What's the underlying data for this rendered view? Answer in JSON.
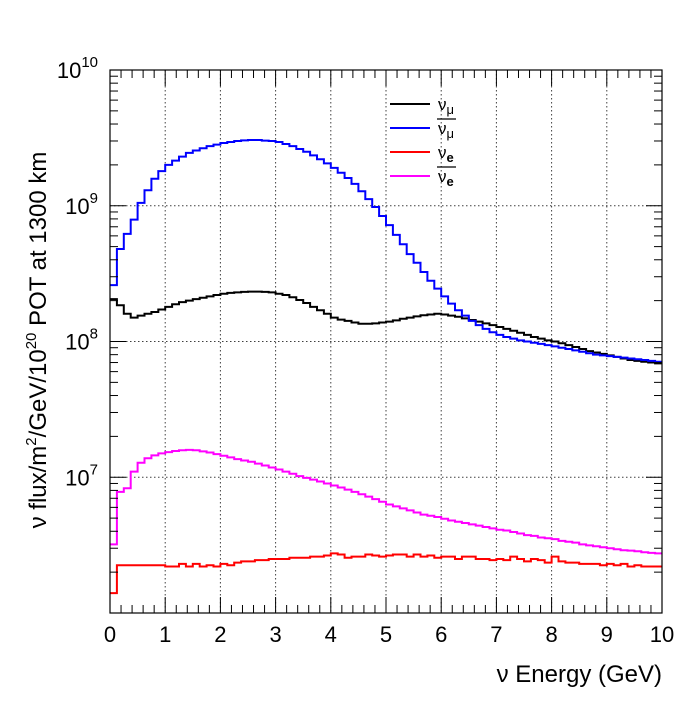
{
  "chart_data": {
    "type": "line",
    "step": true,
    "title": "",
    "xlabel": "ν Energy (GeV)",
    "ylabel": {
      "pre": "ν flux/m",
      "sup1": "2",
      "mid": "/GeV/10",
      "sup2": "20",
      "post": " POT at 1300 km"
    },
    "xlim": [
      0,
      10
    ],
    "ylim": [
      1000000,
      10000000000
    ],
    "yscale": "log",
    "grid": true,
    "legend_position": "top-right",
    "x_ticks": [
      "0",
      "1",
      "2",
      "3",
      "4",
      "5",
      "6",
      "7",
      "8",
      "9",
      "10"
    ],
    "y_ticks": [
      {
        "value": 10000000,
        "base": "10",
        "exp": "7"
      },
      {
        "value": 100000000,
        "base": "10",
        "exp": "8"
      },
      {
        "value": 1000000000,
        "base": "10",
        "exp": "9"
      },
      {
        "value": 10000000000,
        "base": "10",
        "exp": "10"
      }
    ],
    "bin_edges": [
      0,
      0.125,
      0.25,
      0.375,
      0.5,
      0.625,
      0.75,
      0.875,
      1.0,
      1.125,
      1.25,
      1.375,
      1.5,
      1.625,
      1.75,
      1.875,
      2.0,
      2.125,
      2.25,
      2.375,
      2.5,
      2.625,
      2.75,
      2.875,
      3.0,
      3.125,
      3.25,
      3.375,
      3.5,
      3.625,
      3.75,
      3.875,
      4.0,
      4.125,
      4.25,
      4.375,
      4.5,
      4.625,
      4.75,
      4.875,
      5.0,
      5.125,
      5.25,
      5.375,
      5.5,
      5.625,
      5.75,
      5.875,
      6.0,
      6.125,
      6.25,
      6.375,
      6.5,
      6.625,
      6.75,
      6.875,
      7.0,
      7.125,
      7.25,
      7.375,
      7.5,
      7.625,
      7.75,
      7.875,
      8.0,
      8.125,
      8.25,
      8.375,
      8.5,
      8.625,
      8.75,
      8.875,
      9.0,
      9.125,
      9.25,
      9.375,
      9.5,
      9.625,
      9.75,
      9.875,
      10.0
    ],
    "series": [
      {
        "name": "ν_μ",
        "label_base": "ν",
        "label_sub": "μ",
        "bar": false,
        "color": "#000000",
        "values": [
          205000000.0,
          185000000.0,
          160000000.0,
          150000000.0,
          155000000.0,
          160000000.0,
          165000000.0,
          172000000.0,
          180000000.0,
          188000000.0,
          195000000.0,
          200000000.0,
          205000000.0,
          210000000.0,
          215000000.0,
          220000000.0,
          225000000.0,
          228000000.0,
          230000000.0,
          232000000.0,
          233000000.0,
          233000000.0,
          232000000.0,
          230000000.0,
          225000000.0,
          220000000.0,
          212000000.0,
          202000000.0,
          192000000.0,
          180000000.0,
          170000000.0,
          160000000.0,
          150000000.0,
          145000000.0,
          142000000.0,
          138000000.0,
          135000000.0,
          135000000.0,
          136000000.0,
          138000000.0,
          140000000.0,
          143000000.0,
          147000000.0,
          150000000.0,
          153000000.0,
          156000000.0,
          158000000.0,
          160000000.0,
          158000000.0,
          155000000.0,
          152000000.0,
          148000000.0,
          144000000.0,
          140000000.0,
          136000000.0,
          132000000.0,
          128000000.0,
          124000000.0,
          120000000.0,
          116000000.0,
          112000000.0,
          108000000.0,
          105000000.0,
          102000000.0,
          100000000.0,
          97000000.0,
          94000000.0,
          91000000.0,
          88000000.0,
          85000000.0,
          83000000.0,
          81000000.0,
          79000000.0,
          77000000.0,
          75000000.0,
          73000000.0,
          72000000.0,
          71000000.0,
          70000000.0,
          69000000.0
        ]
      },
      {
        "name": "ν̄_μ",
        "label_base": "ν",
        "label_sub": "μ",
        "bar": true,
        "color": "#0000ff",
        "values": [
          260000000.0,
          480000000.0,
          620000000.0,
          790000000.0,
          1050000000.0,
          1300000000.0,
          1580000000.0,
          1800000000.0,
          2000000000.0,
          2150000000.0,
          2300000000.0,
          2450000000.0,
          2550000000.0,
          2650000000.0,
          2750000000.0,
          2820000000.0,
          2900000000.0,
          2950000000.0,
          3000000000.0,
          3030000000.0,
          3050000000.0,
          3050000000.0,
          3020000000.0,
          3000000000.0,
          2950000000.0,
          2850000000.0,
          2750000000.0,
          2620000000.0,
          2500000000.0,
          2350000000.0,
          2200000000.0,
          2050000000.0,
          1900000000.0,
          1750000000.0,
          1600000000.0,
          1450000000.0,
          1280000000.0,
          1120000000.0,
          980000000.0,
          840000000.0,
          720000000.0,
          610000000.0,
          520000000.0,
          440000000.0,
          380000000.0,
          325000000.0,
          280000000.0,
          245000000.0,
          215000000.0,
          190000000.0,
          170000000.0,
          155000000.0,
          142000000.0,
          132000000.0,
          124000000.0,
          117000000.0,
          112000000.0,
          108000000.0,
          105000000.0,
          102000000.0,
          100000000.0,
          98000000.0,
          96000000.0,
          94000000.0,
          92000000.0,
          90000000.0,
          88000000.0,
          86000000.0,
          84000000.0,
          82000000.0,
          80000000.0,
          79000000.0,
          78000000.0,
          77000000.0,
          76000000.0,
          75000000.0,
          74000000.0,
          73000000.0,
          72000000.0,
          71000000.0
        ]
      },
      {
        "name": "ν_e",
        "label_base": "ν",
        "label_sub": "e",
        "bar": false,
        "color": "#ff0000",
        "values": [
          1400000.0,
          2250000.0,
          2250000.0,
          2250000.0,
          2250000.0,
          2250000.0,
          2250000.0,
          2250000.0,
          2200000.0,
          2200000.0,
          2300000.0,
          2200000.0,
          2300000.0,
          2200000.0,
          2250000.0,
          2200000.0,
          2300000.0,
          2250000.0,
          2350000.0,
          2400000.0,
          2400000.0,
          2450000.0,
          2450000.0,
          2500000.0,
          2500000.0,
          2500000.0,
          2550000.0,
          2550000.0,
          2550000.0,
          2600000.0,
          2600000.0,
          2650000.0,
          2750000.0,
          2700000.0,
          2550000.0,
          2600000.0,
          2600000.0,
          2700000.0,
          2650000.0,
          2600000.0,
          2650000.0,
          2700000.0,
          2700000.0,
          2600000.0,
          2700000.0,
          2600000.0,
          2650000.0,
          2550000.0,
          2600000.0,
          2600000.0,
          2500000.0,
          2600000.0,
          2600000.0,
          2500000.0,
          2500000.0,
          2450000.0,
          2500000.0,
          2450000.0,
          2600000.0,
          2500000.0,
          2400000.0,
          2500000.0,
          2450000.0,
          2350000.0,
          2600000.0,
          2400000.0,
          2350000.0,
          2350000.0,
          2300000.0,
          2300000.0,
          2300000.0,
          2250000.0,
          2300000.0,
          2250000.0,
          2300000.0,
          2200000.0,
          2250000.0,
          2200000.0,
          2200000.0,
          2200000.0
        ]
      },
      {
        "name": "ν̄_e",
        "label_base": "ν",
        "label_sub": "e",
        "bar": true,
        "color": "#ff00ff",
        "values": [
          3200000.0,
          7800000.0,
          8300000.0,
          11000000.0,
          12800000.0,
          13800000.0,
          14500000.0,
          15000000.0,
          15300000.0,
          15600000.0,
          15800000.0,
          15900000.0,
          15800000.0,
          15500000.0,
          15200000.0,
          14800000.0,
          14400000.0,
          14000000.0,
          13600000.0,
          13300000.0,
          13000000.0,
          12600000.0,
          12200000.0,
          11800000.0,
          11400000.0,
          11000000.0,
          10600000.0,
          10200000.0,
          9900000.0,
          9600000.0,
          9300000.0,
          9000000.0,
          8700000.0,
          8400000.0,
          8100000.0,
          7800000.0,
          7500000.0,
          7200000.0,
          6900000.0,
          6600000.0,
          6300000.0,
          6100000.0,
          5900000.0,
          5700000.0,
          5500000.0,
          5300000.0,
          5200000.0,
          5100000.0,
          4950000.0,
          4800000.0,
          4700000.0,
          4600000.0,
          4500000.0,
          4400000.0,
          4300000.0,
          4200000.0,
          4100000.0,
          4050000.0,
          3950000.0,
          3850000.0,
          3750000.0,
          3700000.0,
          3600000.0,
          3550000.0,
          3500000.0,
          3400000.0,
          3350000.0,
          3300000.0,
          3200000.0,
          3150000.0,
          3100000.0,
          3050000.0,
          3000000.0,
          2950000.0,
          2900000.0,
          2880000.0,
          2850000.0,
          2800000.0,
          2770000.0,
          2750000.0
        ]
      }
    ]
  }
}
